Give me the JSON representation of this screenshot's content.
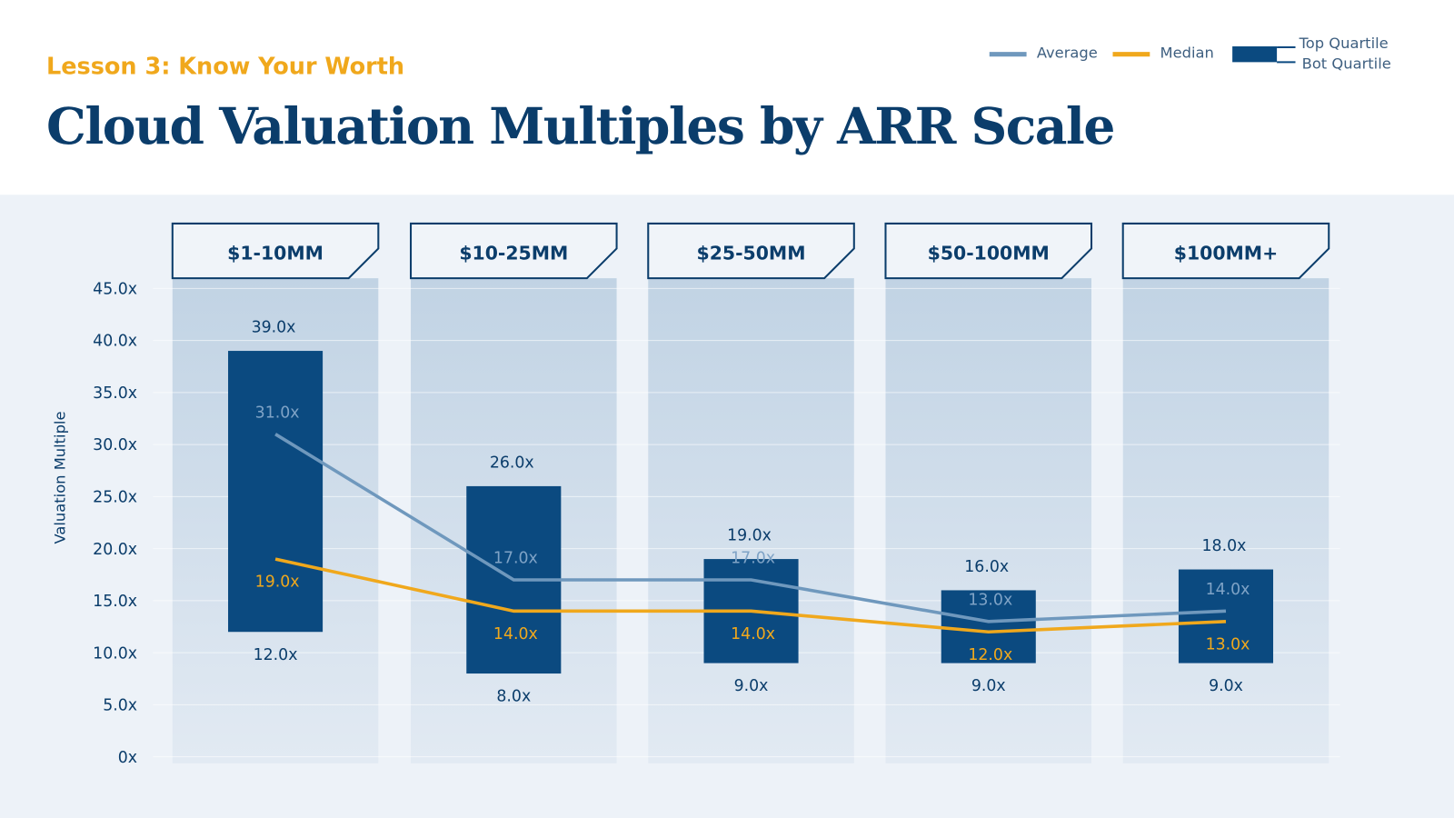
{
  "chart_data": {
    "type": "bar",
    "subtitle": "Lesson 3: Know Your Worth",
    "title": "Cloud Valuation Multiples by ARR Scale",
    "ylabel": "Valuation Multiple",
    "ylim": [
      0,
      45
    ],
    "yticks": [
      "0x",
      "5.0x",
      "10.0x",
      "15.0x",
      "20.0x",
      "25.0x",
      "30.0x",
      "35.0x",
      "40.0x",
      "45.0x"
    ],
    "ytick_values": [
      0,
      5,
      10,
      15,
      20,
      25,
      30,
      35,
      40,
      45
    ],
    "grid": true,
    "legend_position": "top-right",
    "legend": {
      "average": "Average",
      "median": "Median",
      "top": "Top Quartile",
      "bot": "Bot Quartile"
    },
    "categories": [
      "$1-10MM",
      "$10-25MM",
      "$25-50MM",
      "$50-100MM",
      "$100MM+"
    ],
    "top_quartile": [
      39,
      26,
      19,
      16,
      18
    ],
    "bot_quartile": [
      12,
      8,
      9,
      9,
      9
    ],
    "average": [
      31,
      17,
      17,
      13,
      14
    ],
    "median": [
      19,
      14,
      14,
      12,
      13
    ],
    "colors": {
      "bar": "#0b4a80",
      "average": "#6f98bd",
      "median": "#f0a81c",
      "text": "#0b3d6b"
    }
  }
}
